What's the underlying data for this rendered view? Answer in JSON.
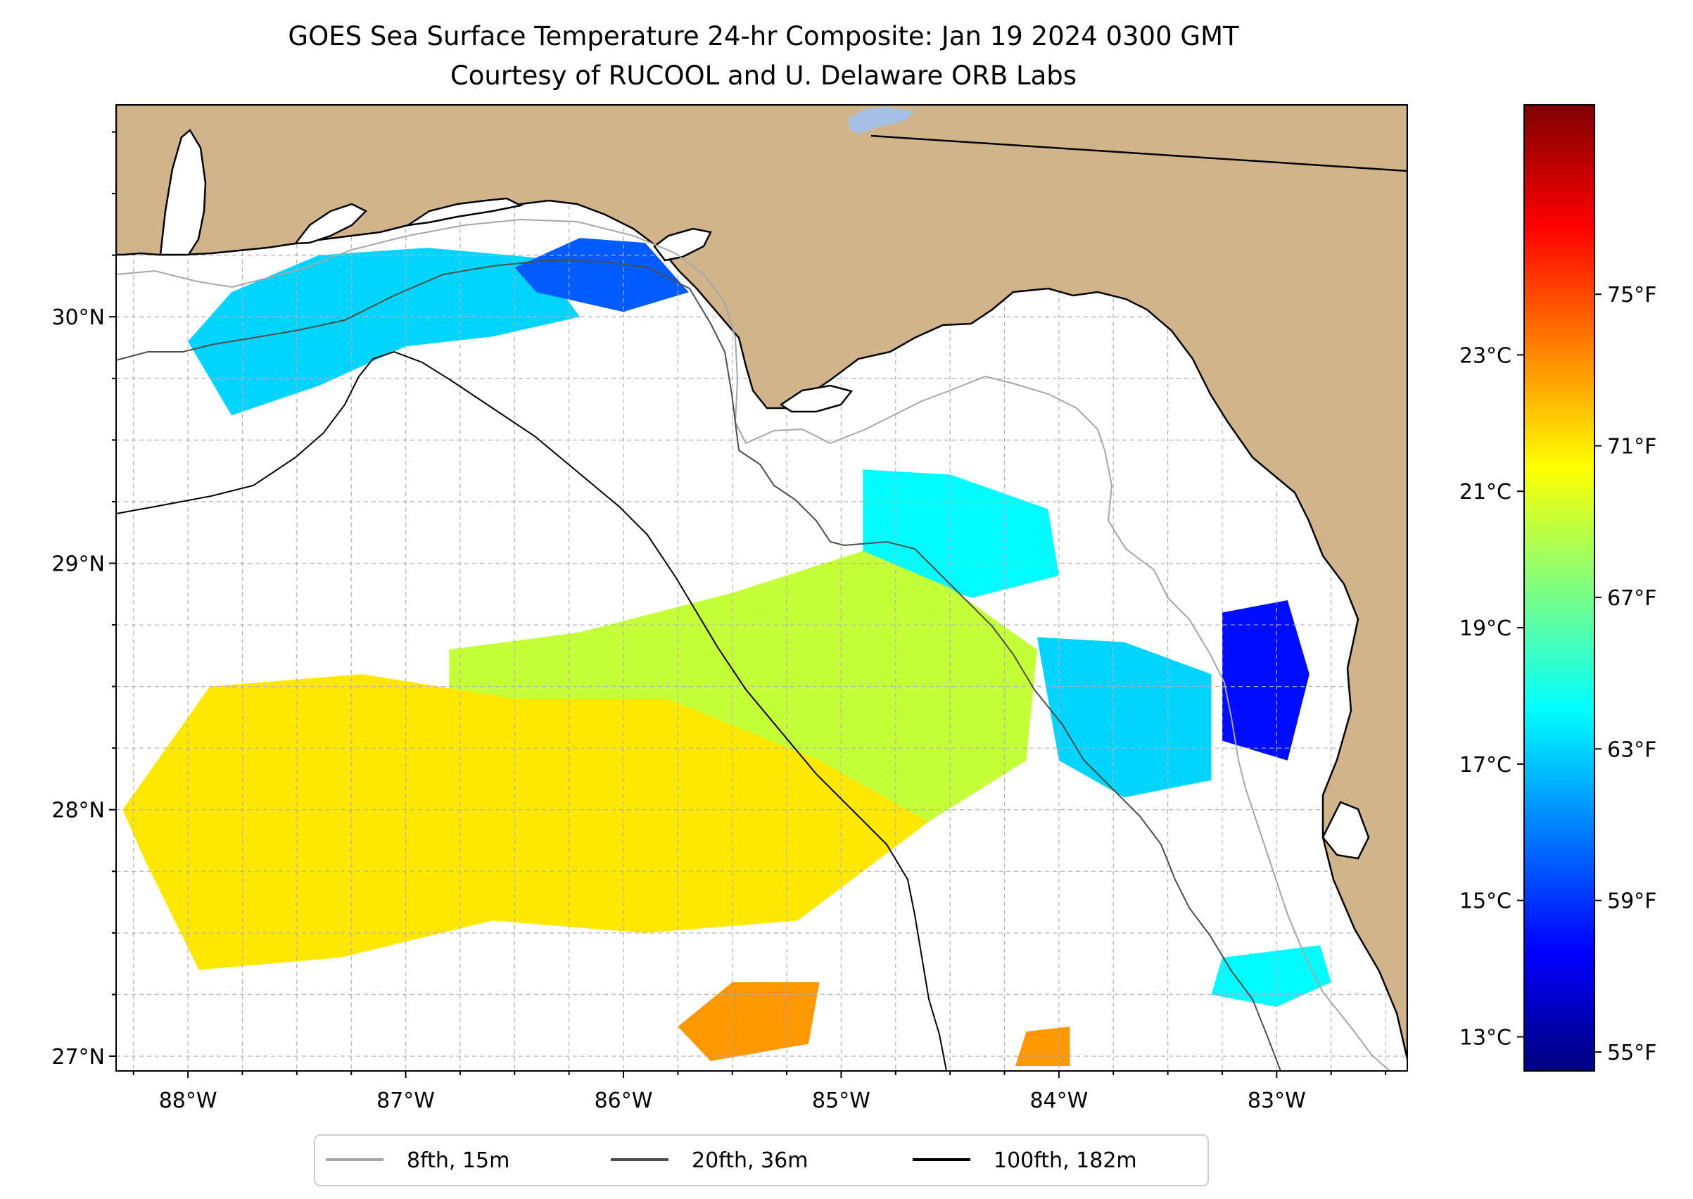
{
  "title": {
    "line1": "GOES Sea Surface Temperature 24-hr Composite: Jan 19 2024 0300 GMT",
    "line2": "Courtesy of RUCOOL and U. Delaware ORB Labs"
  },
  "map": {
    "extent": {
      "lon_min": -88.33,
      "lon_max": -82.4,
      "lat_min": 26.94,
      "lat_max": 30.86
    },
    "colors": {
      "land": "#d2b48c",
      "water": "#ffffff",
      "coastline": "#000000",
      "lake": "#a6bfe4",
      "gridline": "#b0b0b0",
      "contour_8fth": "#a6a6a6",
      "contour_20fth": "#4d4d4d",
      "contour_100fth": "#000000"
    },
    "lon_ticks": [
      {
        "value": -88,
        "label": "88°W"
      },
      {
        "value": -87,
        "label": "87°W"
      },
      {
        "value": -86,
        "label": "86°W"
      },
      {
        "value": -85,
        "label": "85°W"
      },
      {
        "value": -84,
        "label": "84°W"
      },
      {
        "value": -83,
        "label": "83°W"
      }
    ],
    "lat_ticks": [
      {
        "value": 27,
        "label": "27°N"
      },
      {
        "value": 28,
        "label": "28°N"
      },
      {
        "value": 29,
        "label": "29°N"
      },
      {
        "value": 30,
        "label": "30°N"
      }
    ],
    "sst_patches": [
      {
        "name": "panhandle-west",
        "temp_f": 63,
        "points": [
          [
            -87.8,
            30.1
          ],
          [
            -87.4,
            30.25
          ],
          [
            -86.9,
            30.28
          ],
          [
            -86.4,
            30.24
          ],
          [
            -86.2,
            30.0
          ],
          [
            -86.6,
            29.92
          ],
          [
            -87.0,
            29.88
          ],
          [
            -87.4,
            29.72
          ],
          [
            -87.8,
            29.6
          ],
          [
            -88.0,
            29.9
          ]
        ]
      },
      {
        "name": "panhandle-destin",
        "temp_f": 60,
        "points": [
          [
            -86.5,
            30.2
          ],
          [
            -86.2,
            30.32
          ],
          [
            -85.9,
            30.3
          ],
          [
            -85.7,
            30.1
          ],
          [
            -86.0,
            30.02
          ],
          [
            -86.4,
            30.1
          ]
        ]
      },
      {
        "name": "big-bend-north",
        "temp_f": 64,
        "points": [
          [
            -84.9,
            29.38
          ],
          [
            -84.5,
            29.36
          ],
          [
            -84.05,
            29.22
          ],
          [
            -84.0,
            28.95
          ],
          [
            -84.4,
            28.86
          ],
          [
            -84.9,
            29.0
          ]
        ]
      },
      {
        "name": "gulf-central-yellow",
        "temp_f": 69,
        "points": [
          [
            -86.8,
            28.65
          ],
          [
            -86.2,
            28.72
          ],
          [
            -85.5,
            28.88
          ],
          [
            -84.9,
            29.05
          ],
          [
            -84.5,
            28.9
          ],
          [
            -84.1,
            28.65
          ],
          [
            -84.15,
            28.2
          ],
          [
            -84.6,
            27.95
          ],
          [
            -85.1,
            28.2
          ],
          [
            -85.7,
            28.4
          ],
          [
            -86.3,
            28.42
          ],
          [
            -86.8,
            28.4
          ]
        ]
      },
      {
        "name": "west-central-cyan",
        "temp_f": 63,
        "points": [
          [
            -84.1,
            28.7
          ],
          [
            -83.7,
            28.68
          ],
          [
            -83.3,
            28.55
          ],
          [
            -83.3,
            28.12
          ],
          [
            -83.7,
            28.05
          ],
          [
            -84.0,
            28.2
          ]
        ]
      },
      {
        "name": "crystal-river-blue",
        "temp_f": 58,
        "points": [
          [
            -83.25,
            28.8
          ],
          [
            -82.95,
            28.85
          ],
          [
            -82.85,
            28.55
          ],
          [
            -82.95,
            28.2
          ],
          [
            -83.25,
            28.28
          ]
        ]
      },
      {
        "name": "gulf-south-orange",
        "temp_f": 71,
        "points": [
          [
            -88.3,
            28.0
          ],
          [
            -87.9,
            28.5
          ],
          [
            -87.2,
            28.55
          ],
          [
            -86.5,
            28.45
          ],
          [
            -85.8,
            28.45
          ],
          [
            -85.1,
            28.2
          ],
          [
            -84.6,
            27.95
          ],
          [
            -85.2,
            27.55
          ],
          [
            -85.9,
            27.5
          ],
          [
            -86.6,
            27.55
          ],
          [
            -87.3,
            27.4
          ],
          [
            -87.95,
            27.35
          ],
          [
            -88.2,
            27.8
          ]
        ]
      },
      {
        "name": "south-orange-blob-1",
        "temp_f": 73,
        "points": [
          [
            -85.5,
            27.3
          ],
          [
            -85.1,
            27.3
          ],
          [
            -85.15,
            27.05
          ],
          [
            -85.6,
            26.98
          ],
          [
            -85.75,
            27.12
          ]
        ]
      },
      {
        "name": "south-orange-blob-2",
        "temp_f": 73,
        "points": [
          [
            -84.15,
            27.1
          ],
          [
            -83.95,
            27.12
          ],
          [
            -83.95,
            26.96
          ],
          [
            -84.2,
            26.96
          ]
        ]
      },
      {
        "name": "south-cyan-blob",
        "temp_f": 64,
        "points": [
          [
            -83.25,
            27.4
          ],
          [
            -82.8,
            27.45
          ],
          [
            -82.75,
            27.3
          ],
          [
            -83.0,
            27.2
          ],
          [
            -83.3,
            27.25
          ]
        ]
      }
    ]
  },
  "legend": {
    "items": [
      {
        "label": "8fth, 15m",
        "color": "#a6a6a6"
      },
      {
        "label": "20fth, 36m",
        "color": "#4d4d4d"
      },
      {
        "label": "100fth, 182m",
        "color": "#000000"
      }
    ]
  },
  "colorbar": {
    "temp_min_f": 54.5,
    "temp_max_f": 80.0,
    "stops": [
      "#00007f",
      "#0000ff",
      "#007fff",
      "#00ffff",
      "#7fff7f",
      "#ffff00",
      "#ff7f00",
      "#ff0000",
      "#7f0000"
    ],
    "celsius_ticks": [
      {
        "value_f": 55.4,
        "label": "13°C"
      },
      {
        "value_f": 59.0,
        "label": "15°C"
      },
      {
        "value_f": 62.6,
        "label": "17°C"
      },
      {
        "value_f": 66.2,
        "label": "19°C"
      },
      {
        "value_f": 69.8,
        "label": "21°C"
      },
      {
        "value_f": 73.4,
        "label": "23°C"
      }
    ],
    "fahrenheit_ticks": [
      {
        "value_f": 55,
        "label": "55°F"
      },
      {
        "value_f": 59,
        "label": "59°F"
      },
      {
        "value_f": 63,
        "label": "63°F"
      },
      {
        "value_f": 67,
        "label": "67°F"
      },
      {
        "value_f": 71,
        "label": "71°F"
      },
      {
        "value_f": 75,
        "label": "75°F"
      }
    ]
  }
}
